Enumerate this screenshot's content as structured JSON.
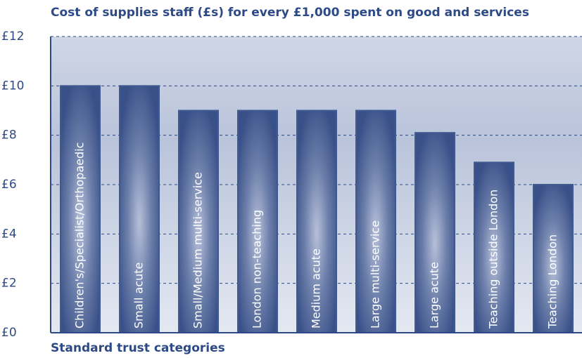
{
  "chart_data": {
    "type": "bar",
    "title": "Cost of supplies staff (£s) for every £1,000 spent on good and services",
    "x_label": "Standard trust categories",
    "categories": [
      "Children's/Specialist/Orthopaedic",
      "Small acute",
      "Small/Medium multi-service",
      "London non-teaching",
      "Medium acute",
      "Large multi-service",
      "Large acute",
      "Teaching outside London",
      "Teaching London"
    ],
    "values": [
      10,
      10,
      9,
      9,
      9,
      9,
      8.1,
      6.9,
      6
    ],
    "color": "#3f5a8f",
    "ylim": [
      0,
      12
    ],
    "yticks": [
      {
        "value": 0,
        "label": "£0"
      },
      {
        "value": 2,
        "label": "£2"
      },
      {
        "value": 4,
        "label": "£4"
      },
      {
        "value": 6,
        "label": "£6"
      },
      {
        "value": 8,
        "label": "£8"
      },
      {
        "value": 10,
        "label": "£10"
      },
      {
        "value": 12,
        "label": "£12"
      }
    ],
    "grid": true
  }
}
